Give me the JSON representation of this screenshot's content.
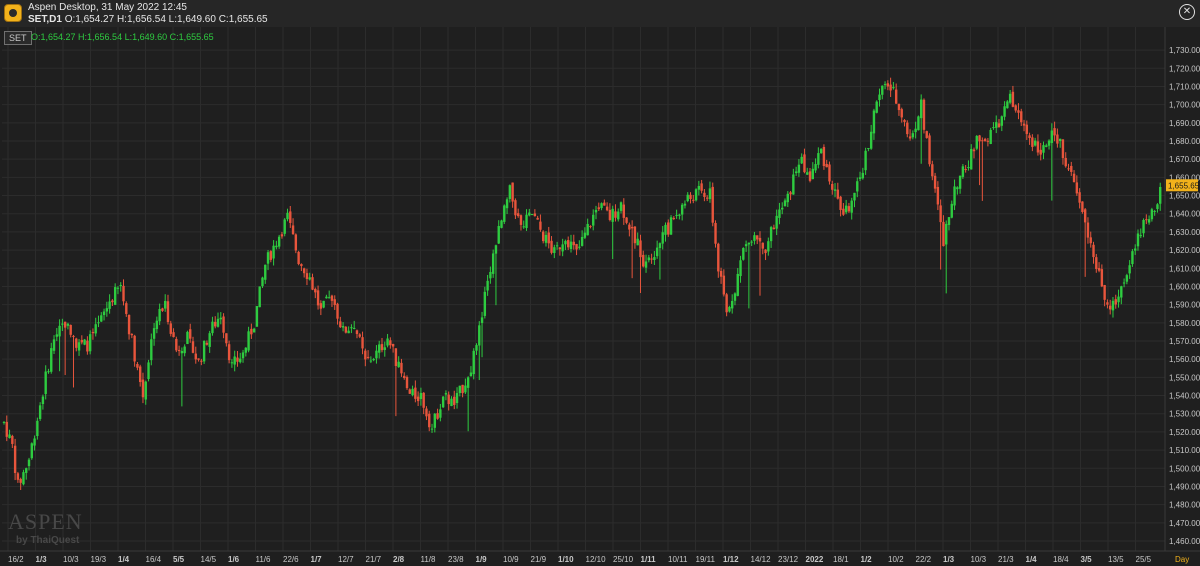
{
  "window": {
    "title": "Aspen Desktop, 31 May 2022 12:45",
    "symbol_timeframe": "SET,D1",
    "ohlc_text": "O:1,654.27 H:1,656.54 L:1,649.60 C:1,655.65",
    "close_symbol": "✕"
  },
  "legend": {
    "symbol": "SET",
    "ohlc_text": "O:1,654.27 H:1,656.54 L:1,649.60 C:1,655.65"
  },
  "watermark": {
    "brand": "ASPEN",
    "sub": "by ThaiQuest"
  },
  "colors": {
    "up": "#2ecc40",
    "down": "#e8553c",
    "background": "#1f1f1f",
    "grid": "#2c2c2c",
    "axis_text": "#c8c8c8",
    "price_tag": "#f2b21b",
    "day_label": "#f2b21b"
  },
  "chart_data": {
    "type": "candlestick",
    "symbol": "SET",
    "timeframe": "D1",
    "ylim": [
      1460,
      1735
    ],
    "yticks": [
      "1,730.00",
      "1,720.00",
      "1,710.00",
      "1,700.00",
      "1,690.00",
      "1,680.00",
      "1,670.00",
      "1,660.00",
      "1,650.00",
      "1,640.00",
      "1,630.00",
      "1,620.00",
      "1,610.00",
      "1,600.00",
      "1,590.00",
      "1,580.00",
      "1,570.00",
      "1,560.00",
      "1,550.00",
      "1,540.00",
      "1,530.00",
      "1,520.00",
      "1,510.00",
      "1,500.00",
      "1,490.00",
      "1,480.00",
      "1,470.00",
      "1,460.00"
    ],
    "xticks": [
      {
        "label": "16/2",
        "bold": false
      },
      {
        "label": "1/3",
        "bold": true
      },
      {
        "label": "10/3",
        "bold": false
      },
      {
        "label": "19/3",
        "bold": false
      },
      {
        "label": "1/4",
        "bold": true
      },
      {
        "label": "16/4",
        "bold": false
      },
      {
        "label": "5/5",
        "bold": true
      },
      {
        "label": "14/5",
        "bold": false
      },
      {
        "label": "1/6",
        "bold": true
      },
      {
        "label": "11/6",
        "bold": false
      },
      {
        "label": "22/6",
        "bold": false
      },
      {
        "label": "1/7",
        "bold": true
      },
      {
        "label": "12/7",
        "bold": false
      },
      {
        "label": "21/7",
        "bold": false
      },
      {
        "label": "2/8",
        "bold": true
      },
      {
        "label": "11/8",
        "bold": false
      },
      {
        "label": "23/8",
        "bold": false
      },
      {
        "label": "1/9",
        "bold": true
      },
      {
        "label": "10/9",
        "bold": false
      },
      {
        "label": "21/9",
        "bold": false
      },
      {
        "label": "1/10",
        "bold": true
      },
      {
        "label": "12/10",
        "bold": false
      },
      {
        "label": "25/10",
        "bold": false
      },
      {
        "label": "1/11",
        "bold": true
      },
      {
        "label": "10/11",
        "bold": false
      },
      {
        "label": "19/11",
        "bold": false
      },
      {
        "label": "1/12",
        "bold": true
      },
      {
        "label": "14/12",
        "bold": false
      },
      {
        "label": "23/12",
        "bold": false
      },
      {
        "label": "2022",
        "bold": true
      },
      {
        "label": "18/1",
        "bold": false
      },
      {
        "label": "1/2",
        "bold": true
      },
      {
        "label": "10/2",
        "bold": false
      },
      {
        "label": "22/2",
        "bold": false
      },
      {
        "label": "1/3",
        "bold": true
      },
      {
        "label": "10/3",
        "bold": false
      },
      {
        "label": "21/3",
        "bold": false
      },
      {
        "label": "1/4",
        "bold": true
      },
      {
        "label": "18/4",
        "bold": false
      },
      {
        "label": "3/5",
        "bold": true
      },
      {
        "label": "13/5",
        "bold": false
      },
      {
        "label": "25/5",
        "bold": false
      }
    ],
    "xaxis_unit": "Day",
    "last_price": "1,655.65",
    "path_points": [
      {
        "i": 0,
        "p": 1525
      },
      {
        "i": 3,
        "p": 1512
      },
      {
        "i": 5,
        "p": 1490
      },
      {
        "i": 9,
        "p": 1505
      },
      {
        "i": 13,
        "p": 1535
      },
      {
        "i": 18,
        "p": 1572
      },
      {
        "i": 22,
        "p": 1580
      },
      {
        "i": 26,
        "p": 1567
      },
      {
        "i": 30,
        "p": 1568
      },
      {
        "i": 34,
        "p": 1578
      },
      {
        "i": 38,
        "p": 1592
      },
      {
        "i": 42,
        "p": 1600
      },
      {
        "i": 46,
        "p": 1570
      },
      {
        "i": 50,
        "p": 1540
      },
      {
        "i": 54,
        "p": 1580
      },
      {
        "i": 58,
        "p": 1590
      },
      {
        "i": 62,
        "p": 1565
      },
      {
        "i": 66,
        "p": 1572
      },
      {
        "i": 70,
        "p": 1558
      },
      {
        "i": 74,
        "p": 1575
      },
      {
        "i": 78,
        "p": 1585
      },
      {
        "i": 82,
        "p": 1556
      },
      {
        "i": 86,
        "p": 1563
      },
      {
        "i": 90,
        "p": 1580
      },
      {
        "i": 94,
        "p": 1612
      },
      {
        "i": 98,
        "p": 1625
      },
      {
        "i": 102,
        "p": 1638
      },
      {
        "i": 106,
        "p": 1615
      },
      {
        "i": 110,
        "p": 1605
      },
      {
        "i": 114,
        "p": 1586
      },
      {
        "i": 118,
        "p": 1595
      },
      {
        "i": 122,
        "p": 1575
      },
      {
        "i": 126,
        "p": 1580
      },
      {
        "i": 130,
        "p": 1558
      },
      {
        "i": 134,
        "p": 1563
      },
      {
        "i": 138,
        "p": 1572
      },
      {
        "i": 142,
        "p": 1555
      },
      {
        "i": 146,
        "p": 1540
      },
      {
        "i": 150,
        "p": 1540
      },
      {
        "i": 154,
        "p": 1522
      },
      {
        "i": 158,
        "p": 1540
      },
      {
        "i": 162,
        "p": 1535
      },
      {
        "i": 166,
        "p": 1548
      },
      {
        "i": 170,
        "p": 1565
      },
      {
        "i": 174,
        "p": 1605
      },
      {
        "i": 178,
        "p": 1630
      },
      {
        "i": 182,
        "p": 1652
      },
      {
        "i": 186,
        "p": 1632
      },
      {
        "i": 190,
        "p": 1640
      },
      {
        "i": 194,
        "p": 1628
      },
      {
        "i": 198,
        "p": 1618
      },
      {
        "i": 202,
        "p": 1628
      },
      {
        "i": 206,
        "p": 1618
      },
      {
        "i": 210,
        "p": 1632
      },
      {
        "i": 214,
        "p": 1645
      },
      {
        "i": 218,
        "p": 1638
      },
      {
        "i": 222,
        "p": 1645
      },
      {
        "i": 226,
        "p": 1630
      },
      {
        "i": 230,
        "p": 1615
      },
      {
        "i": 234,
        "p": 1620
      },
      {
        "i": 238,
        "p": 1630
      },
      {
        "i": 242,
        "p": 1640
      },
      {
        "i": 246,
        "p": 1648
      },
      {
        "i": 250,
        "p": 1652
      },
      {
        "i": 254,
        "p": 1650
      },
      {
        "i": 257,
        "p": 1610
      },
      {
        "i": 260,
        "p": 1585
      },
      {
        "i": 263,
        "p": 1600
      },
      {
        "i": 266,
        "p": 1620
      },
      {
        "i": 270,
        "p": 1630
      },
      {
        "i": 274,
        "p": 1622
      },
      {
        "i": 278,
        "p": 1638
      },
      {
        "i": 282,
        "p": 1648
      },
      {
        "i": 286,
        "p": 1670
      },
      {
        "i": 290,
        "p": 1660
      },
      {
        "i": 294,
        "p": 1675
      },
      {
        "i": 298,
        "p": 1655
      },
      {
        "i": 302,
        "p": 1640
      },
      {
        "i": 306,
        "p": 1648
      },
      {
        "i": 310,
        "p": 1672
      },
      {
        "i": 314,
        "p": 1702
      },
      {
        "i": 318,
        "p": 1712
      },
      {
        "i": 322,
        "p": 1700
      },
      {
        "i": 326,
        "p": 1680
      },
      {
        "i": 330,
        "p": 1700
      },
      {
        "i": 334,
        "p": 1660
      },
      {
        "i": 338,
        "p": 1625
      },
      {
        "i": 342,
        "p": 1655
      },
      {
        "i": 346,
        "p": 1665
      },
      {
        "i": 350,
        "p": 1680
      },
      {
        "i": 354,
        "p": 1682
      },
      {
        "i": 358,
        "p": 1690
      },
      {
        "i": 362,
        "p": 1703
      },
      {
        "i": 366,
        "p": 1690
      },
      {
        "i": 370,
        "p": 1680
      },
      {
        "i": 374,
        "p": 1675
      },
      {
        "i": 378,
        "p": 1685
      },
      {
        "i": 382,
        "p": 1670
      },
      {
        "i": 386,
        "p": 1650
      },
      {
        "i": 390,
        "p": 1630
      },
      {
        "i": 394,
        "p": 1605
      },
      {
        "i": 398,
        "p": 1585
      },
      {
        "i": 402,
        "p": 1600
      },
      {
        "i": 406,
        "p": 1620
      },
      {
        "i": 410,
        "p": 1635
      },
      {
        "i": 414,
        "p": 1642
      },
      {
        "i": 416,
        "p": 1655
      }
    ]
  }
}
